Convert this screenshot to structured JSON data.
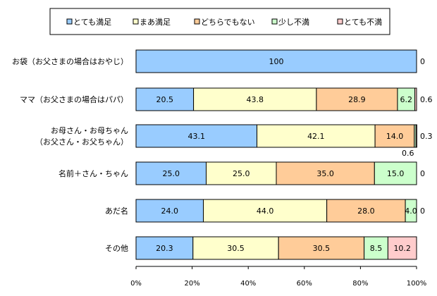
{
  "chart_data": {
    "type": "bar",
    "orientation": "horizontal",
    "stacked": true,
    "legend": "top",
    "grid": false,
    "xlim": [
      0,
      100
    ],
    "x_ticks": [
      "0%",
      "20%",
      "40%",
      "60%",
      "80%",
      "100%"
    ],
    "categories": [
      [
        "お袋（お父さまの場合はおやじ）"
      ],
      [
        "ママ（お父さまの場合はパパ）"
      ],
      [
        "お母さん・お母ちゃん",
        "（お父さん・お父ちゃん）"
      ],
      [
        "名前＋さん・ちゃん"
      ],
      [
        "あだ名"
      ],
      [
        "その他"
      ]
    ],
    "series": [
      {
        "name": "とても満足",
        "color": "#99ccff",
        "values": [
          100,
          20.5,
          43.1,
          25.0,
          24.0,
          20.3
        ]
      },
      {
        "name": "まあ満足",
        "color": "#ffffcc",
        "values": [
          0,
          43.8,
          42.1,
          25.0,
          44.0,
          30.5
        ]
      },
      {
        "name": "どちらでもない",
        "color": "#ffcc99",
        "values": [
          0,
          28.9,
          14.0,
          35.0,
          28.0,
          30.5
        ]
      },
      {
        "name": "少し不満",
        "color": "#ccffcc",
        "values": [
          0,
          6.2,
          0.6,
          15.0,
          4.0,
          8.5
        ]
      },
      {
        "name": "とても不満",
        "color": "#ffcccc",
        "values": [
          0,
          0.6,
          0.3,
          0,
          0,
          10.2
        ]
      }
    ],
    "segment_labels": [
      [
        "100",
        "",
        "",
        "",
        ""
      ],
      [
        "20.5",
        "43.8",
        "28.9",
        "6.2",
        ""
      ],
      [
        "43.1",
        "42.1",
        "14.0",
        "",
        ""
      ],
      [
        "25.0",
        "25.0",
        "35.0",
        "15.0",
        ""
      ],
      [
        "24.0",
        "44.0",
        "28.0",
        "4.0",
        ""
      ],
      [
        "20.3",
        "30.5",
        "30.5",
        "8.5",
        "10.2"
      ]
    ],
    "end_labels": [
      [
        "0"
      ],
      [
        "0.6"
      ],
      [
        "0.3",
        "0.6"
      ],
      [
        "0"
      ],
      [
        "0"
      ],
      []
    ]
  }
}
